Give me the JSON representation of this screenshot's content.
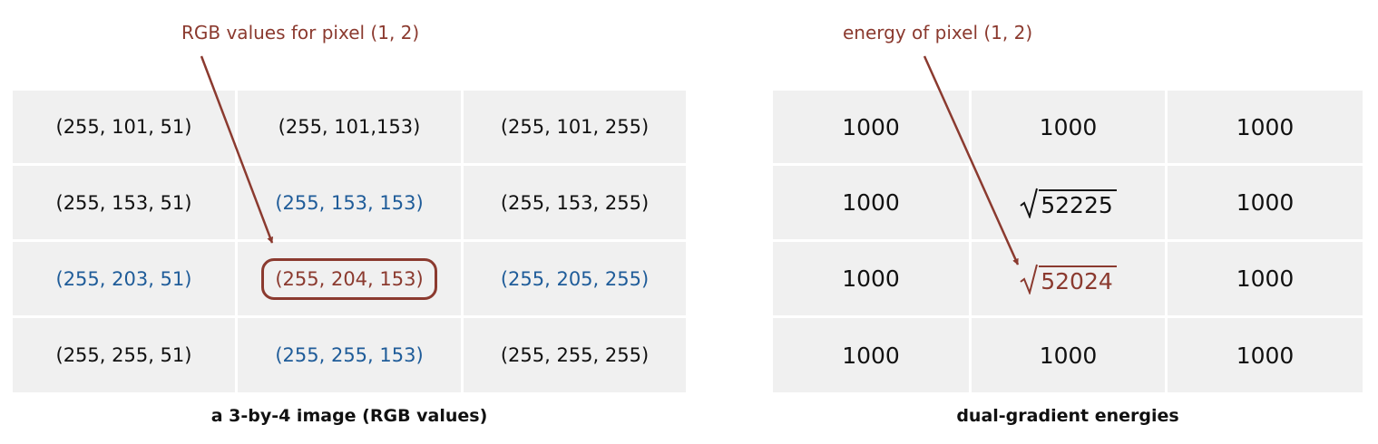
{
  "annotations": {
    "rgb_callout": "RGB values for pixel (1, 2)",
    "energy_callout": "energy of pixel (1, 2)"
  },
  "rgb_image": {
    "caption": "a 3-by-4 image (RGB values)",
    "rows": [
      [
        {
          "text": "(255, 101, 51)",
          "tone": "black"
        },
        {
          "text": "(255, 101,153)",
          "tone": "black"
        },
        {
          "text": "(255, 101, 255)",
          "tone": "black"
        }
      ],
      [
        {
          "text": "(255, 153, 51)",
          "tone": "black"
        },
        {
          "text": "(255, 153, 153)",
          "tone": "blue"
        },
        {
          "text": "(255, 153, 255)",
          "tone": "black"
        }
      ],
      [
        {
          "text": "(255, 203, 51)",
          "tone": "blue"
        },
        {
          "text": "(255, 204, 153)",
          "tone": "red",
          "highlighted": true
        },
        {
          "text": "(255, 205, 255)",
          "tone": "blue"
        }
      ],
      [
        {
          "text": "(255, 255, 51)",
          "tone": "black"
        },
        {
          "text": "(255, 255, 153)",
          "tone": "blue"
        },
        {
          "text": "(255, 255, 255)",
          "tone": "black"
        }
      ]
    ]
  },
  "energies": {
    "caption": "dual-gradient energies",
    "rows": [
      [
        {
          "text": "1000"
        },
        {
          "text": "1000"
        },
        {
          "text": "1000"
        }
      ],
      [
        {
          "text": "1000"
        },
        {
          "text": "52225",
          "sqrt": true
        },
        {
          "text": "1000"
        }
      ],
      [
        {
          "text": "1000"
        },
        {
          "text": "52024",
          "sqrt": true,
          "tone": "red"
        },
        {
          "text": "1000"
        }
      ],
      [
        {
          "text": "1000"
        },
        {
          "text": "1000"
        },
        {
          "text": "1000"
        }
      ]
    ]
  },
  "colors": {
    "accent_red": "#8b3a2f",
    "highlight_blue": "#1f5c99",
    "cell_background": "#f0f0f0"
  }
}
